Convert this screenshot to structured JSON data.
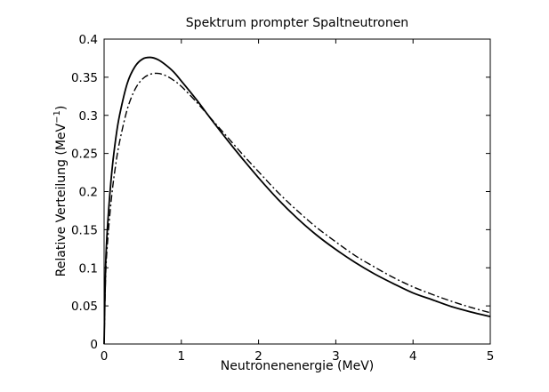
{
  "chart_data": {
    "type": "line",
    "title": "Spektrum prompter Spaltneutronen",
    "xlabel": "Neutronenenergie (MeV)",
    "ylabel": "Relative Verteilung (MeV",
    "ylabel_superscript": "−1",
    "ylabel_suffix": ")",
    "xlim": [
      0,
      5
    ],
    "ylim": [
      0,
      0.4
    ],
    "grid": false,
    "legend": "none",
    "x_ticks": [
      "0",
      "1",
      "2",
      "3",
      "4",
      "5"
    ],
    "y_ticks": [
      "0",
      "0.05",
      "0.1",
      "0.15",
      "0.2",
      "0.25",
      "0.3",
      "0.35",
      "0.4"
    ],
    "x": [
      0,
      0.02,
      0.05,
      0.1,
      0.15,
      0.2,
      0.3,
      0.4,
      0.5,
      0.6,
      0.7,
      0.8,
      0.9,
      1.0,
      1.2,
      1.4,
      1.6,
      1.8,
      2.0,
      2.25,
      2.5,
      2.75,
      3.0,
      3.25,
      3.5,
      3.75,
      4.0,
      4.25,
      4.5,
      4.75,
      5.0
    ],
    "series": [
      {
        "style": "solid",
        "color": "#000000",
        "values": [
          0,
          0.104,
          0.163,
          0.226,
          0.269,
          0.3,
          0.342,
          0.364,
          0.374,
          0.376,
          0.373,
          0.366,
          0.357,
          0.345,
          0.32,
          0.293,
          0.267,
          0.242,
          0.218,
          0.19,
          0.165,
          0.143,
          0.124,
          0.107,
          0.092,
          0.079,
          0.067,
          0.058,
          0.049,
          0.042,
          0.036
        ]
      },
      {
        "style": "dashdot",
        "color": "#000000",
        "values": [
          0,
          0.09,
          0.141,
          0.196,
          0.235,
          0.265,
          0.308,
          0.334,
          0.348,
          0.354,
          0.355,
          0.352,
          0.346,
          0.338,
          0.317,
          0.294,
          0.271,
          0.248,
          0.226,
          0.199,
          0.175,
          0.153,
          0.134,
          0.116,
          0.101,
          0.087,
          0.075,
          0.065,
          0.056,
          0.048,
          0.041
        ]
      }
    ]
  }
}
